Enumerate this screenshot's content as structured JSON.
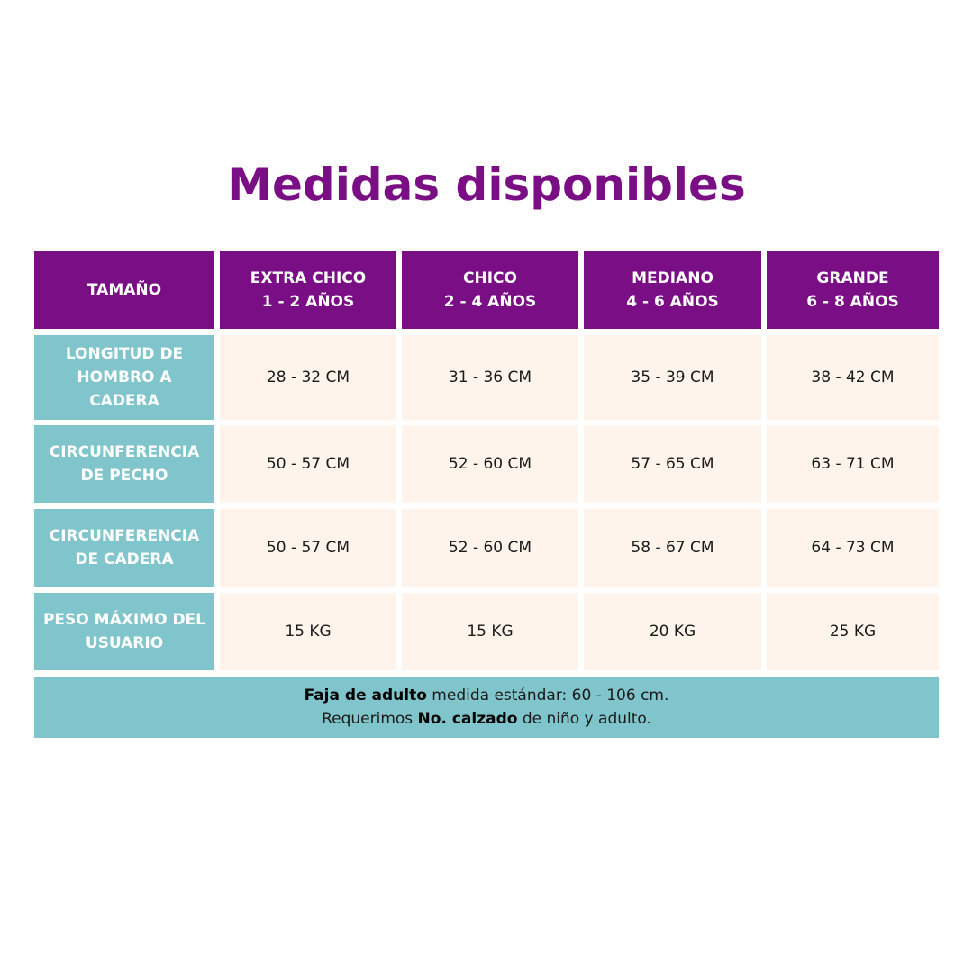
{
  "title": "Medidas disponibles",
  "header": {
    "corner": "TAMAÑO",
    "columns": [
      {
        "line1": "EXTRA CHICO",
        "line2": "1 - 2 AÑOS"
      },
      {
        "line1": "CHICO",
        "line2": "2 - 4 AÑOS"
      },
      {
        "line1": "MEDIANO",
        "line2": "4 - 6 AÑOS"
      },
      {
        "line1": "GRANDE",
        "line2": "6 - 8 AÑOS"
      }
    ]
  },
  "rows": [
    {
      "label": [
        "LONGITUD DE",
        "HOMBRO A",
        "CADERA"
      ],
      "values": [
        "28 - 32 CM",
        "31 - 36 CM",
        "35 - 39 CM",
        "38 - 42 CM"
      ]
    },
    {
      "label": [
        "CIRCUNFERENCIA",
        "DE PECHO"
      ],
      "values": [
        "50 - 57 CM",
        "52 - 60 CM",
        "57 - 65 CM",
        "63 - 71 CM"
      ]
    },
    {
      "label": [
        "CIRCUNFERENCIA",
        "DE CADERA"
      ],
      "values": [
        "50 - 57 CM",
        "52 - 60 CM",
        "58 - 67 CM",
        "64 - 73 CM"
      ]
    },
    {
      "label": [
        "PESO MÁXIMO DEL",
        "USUARIO"
      ],
      "values": [
        "15 KG",
        "15 KG",
        "20 KG",
        "25 KG"
      ]
    }
  ],
  "footer": {
    "line1_bold": "Faja de adulto",
    "line1_rest": " medida estándar: 60 - 106 cm.",
    "line2_start": "Requerimos ",
    "line2_bold": "No. calzado",
    "line2_rest": " de niño y adulto."
  },
  "colors": {
    "title": "#7a0e85",
    "header_bg": "#7a0e85",
    "label_bg": "#80c5cb",
    "value_bg": "#fff4ec"
  }
}
